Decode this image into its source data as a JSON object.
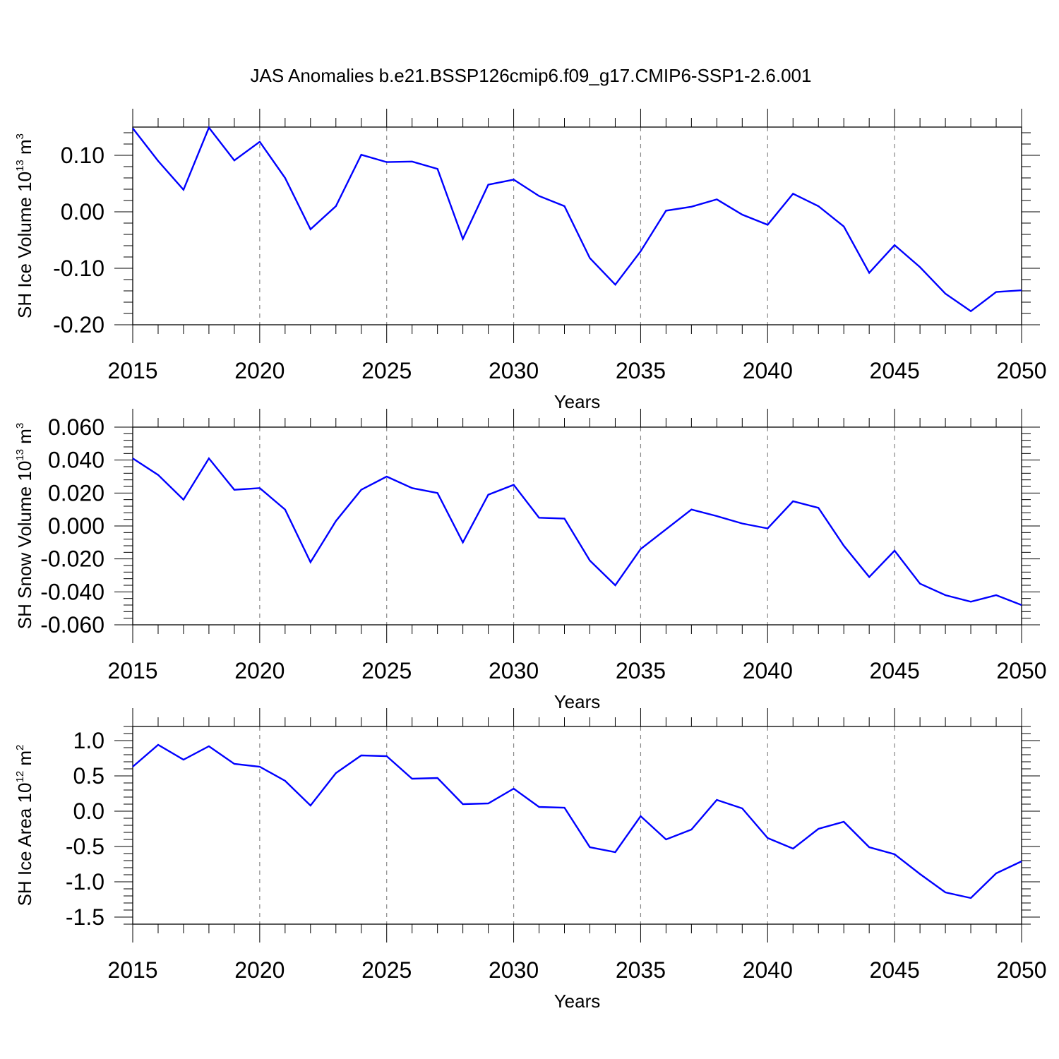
{
  "figure": {
    "title": "JAS Anomalies b.e21.BSSP126cmip6.f09_g17.CMIP6-SSP1-2.6.001"
  },
  "colors": {
    "line": "#0000ff",
    "axis": "#000000",
    "grid": "#888888"
  },
  "chart_data": [
    {
      "type": "line",
      "xlabel": "Years",
      "ylabel": {
        "prefix": "SH Ice Volume 10",
        "exp": "13",
        "unit": " m",
        "unit_exp": "3"
      },
      "xlim": [
        2015,
        2050
      ],
      "ylim": [
        -0.2,
        0.15
      ],
      "xticks": [
        "2015",
        "2020",
        "2025",
        "2030",
        "2035",
        "2040",
        "2045",
        "2050"
      ],
      "yticks": [
        "0.10",
        "0.00",
        "-0.10",
        "-0.20"
      ],
      "ytick_values": [
        0.1,
        0.0,
        -0.1,
        -0.2
      ],
      "grid": "vertical dashed at major x ticks",
      "series": [
        {
          "x": [
            2015,
            2016,
            2017,
            2018,
            2019,
            2020,
            2021,
            2022,
            2023,
            2024,
            2025,
            2026,
            2027,
            2028,
            2029,
            2030,
            2031,
            2032,
            2033,
            2034,
            2035,
            2036,
            2037,
            2038,
            2039,
            2040,
            2041,
            2042,
            2043,
            2044,
            2045,
            2046,
            2047,
            2048,
            2049,
            2050
          ],
          "values": [
            0.148,
            0.09,
            0.039,
            0.149,
            0.091,
            0.124,
            0.06,
            -0.031,
            0.01,
            0.101,
            0.088,
            0.089,
            0.076,
            -0.048,
            0.048,
            0.057,
            0.028,
            0.01,
            -0.082,
            -0.129,
            -0.07,
            0.002,
            0.009,
            0.022,
            -0.005,
            -0.023,
            0.032,
            0.01,
            -0.026,
            -0.108,
            -0.059,
            -0.098,
            -0.145,
            -0.176,
            -0.142,
            -0.139
          ]
        }
      ]
    },
    {
      "type": "line",
      "xlabel": "Years",
      "ylabel": {
        "prefix": "SH Snow Volume 10",
        "exp": "13",
        "unit": " m",
        "unit_exp": "3"
      },
      "xlim": [
        2015,
        2050
      ],
      "ylim": [
        -0.06,
        0.06
      ],
      "xticks": [
        "2015",
        "2020",
        "2025",
        "2030",
        "2035",
        "2040",
        "2045",
        "2050"
      ],
      "yticks": [
        "0.060",
        "0.040",
        "0.020",
        "0.000",
        "-0.020",
        "-0.040",
        "-0.060"
      ],
      "ytick_values": [
        0.06,
        0.04,
        0.02,
        0.0,
        -0.02,
        -0.04,
        -0.06
      ],
      "grid": "vertical dashed at major x ticks",
      "series": [
        {
          "x": [
            2015,
            2016,
            2017,
            2018,
            2019,
            2020,
            2021,
            2022,
            2023,
            2024,
            2025,
            2026,
            2027,
            2028,
            2029,
            2030,
            2031,
            2032,
            2033,
            2034,
            2035,
            2036,
            2037,
            2038,
            2039,
            2040,
            2041,
            2042,
            2043,
            2044,
            2045,
            2046,
            2047,
            2048,
            2049,
            2050
          ],
          "values": [
            0.041,
            0.031,
            0.016,
            0.041,
            0.022,
            0.023,
            0.01,
            -0.022,
            0.003,
            0.022,
            0.03,
            0.023,
            0.02,
            -0.01,
            0.019,
            0.025,
            0.005,
            0.0045,
            -0.021,
            -0.036,
            -0.014,
            -0.002,
            0.01,
            0.006,
            0.0015,
            -0.0015,
            0.015,
            0.011,
            -0.012,
            -0.031,
            -0.015,
            -0.035,
            -0.042,
            -0.046,
            -0.042,
            -0.048
          ]
        }
      ]
    },
    {
      "type": "line",
      "xlabel": "Years",
      "ylabel": {
        "prefix": "SH Ice Area 10",
        "exp": "12",
        "unit": " m",
        "unit_exp": "2"
      },
      "xlim": [
        2015,
        2050
      ],
      "ylim": [
        -1.6,
        1.2
      ],
      "xticks": [
        "2015",
        "2020",
        "2025",
        "2030",
        "2035",
        "2040",
        "2045",
        "2050"
      ],
      "yticks": [
        "1.0",
        "0.5",
        "0.0",
        "-0.5",
        "-1.0",
        "-1.5"
      ],
      "ytick_values": [
        1.0,
        0.5,
        0.0,
        -0.5,
        -1.0,
        -1.5
      ],
      "grid": "vertical dashed at major x ticks",
      "series": [
        {
          "x": [
            2015,
            2016,
            2017,
            2018,
            2019,
            2020,
            2021,
            2022,
            2023,
            2024,
            2025,
            2026,
            2027,
            2028,
            2029,
            2030,
            2031,
            2032,
            2033,
            2034,
            2035,
            2036,
            2037,
            2038,
            2039,
            2040,
            2041,
            2042,
            2043,
            2044,
            2045,
            2046,
            2047,
            2048,
            2049,
            2050
          ],
          "values": [
            0.63,
            0.94,
            0.73,
            0.92,
            0.67,
            0.63,
            0.43,
            0.08,
            0.54,
            0.79,
            0.78,
            0.46,
            0.47,
            0.1,
            0.11,
            0.32,
            0.06,
            0.05,
            -0.51,
            -0.58,
            -0.07,
            -0.4,
            -0.26,
            0.16,
            0.04,
            -0.38,
            -0.53,
            -0.25,
            -0.15,
            -0.51,
            -0.61,
            -0.89,
            -1.15,
            -1.23,
            -0.88,
            -0.71
          ]
        }
      ]
    }
  ]
}
